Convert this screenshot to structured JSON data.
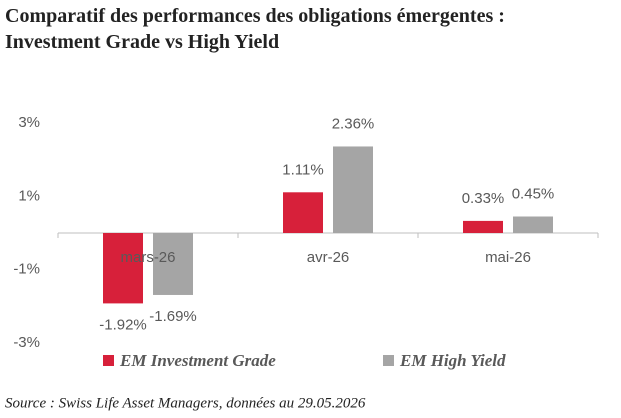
{
  "chart_data": {
    "type": "bar",
    "title": [
      "Comparatif des performances des obligations émergentes :",
      "Investment Grade vs High Yield"
    ],
    "categories": [
      "mars-26",
      "avr-26",
      "mai-26"
    ],
    "series": [
      {
        "name": "EM Investment Grade",
        "color": "#d7203a",
        "values": [
          -1.92,
          1.11,
          0.33
        ],
        "value_labels": [
          "-1.92%",
          "1.11%",
          "0.33%"
        ]
      },
      {
        "name": "EM High Yield",
        "color": "#a5a5a5",
        "values": [
          -1.69,
          2.36,
          0.45
        ],
        "value_labels": [
          "-1.69%",
          "2.36%",
          "0.45%"
        ]
      }
    ],
    "ylim": [
      -3,
      3
    ],
    "yticks": [
      {
        "value": 3,
        "label": "3%"
      },
      {
        "value": 1,
        "label": "1%"
      },
      {
        "value": -1,
        "label": "-1%"
      },
      {
        "value": -3,
        "label": "-3%"
      }
    ],
    "grid": false,
    "source": "Source : Swiss Life Asset Managers, données au 29.05.2026"
  }
}
